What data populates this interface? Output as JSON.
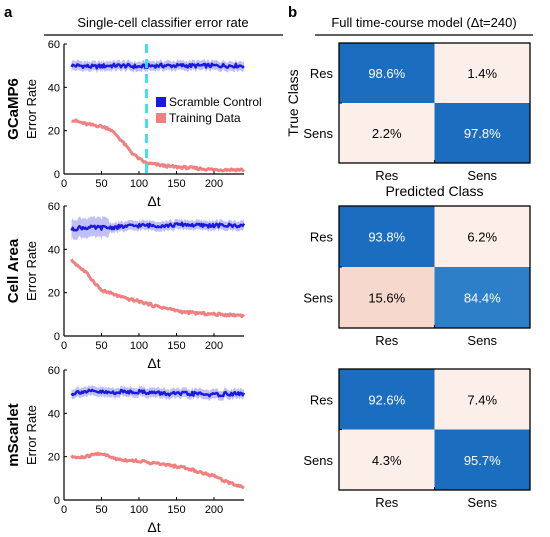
{
  "panel_a": {
    "label": "a",
    "header": "Single-cell classifier error rate",
    "legend": [
      "Scramble Control",
      "Training Data"
    ]
  },
  "panel_b": {
    "label": "b",
    "header": "Full time-course model (Δt=240)"
  },
  "colors": {
    "scramble": "#1a1adc",
    "scramble_band": "#8c8cf0",
    "training": "#f08080",
    "marker_line": "#33e0f0",
    "cm_high": "#1a6dbf",
    "cm_mid": "#2d7fc8",
    "cm_low": "#fcefe9",
    "cm_pink": "#f6d8cc"
  },
  "chart_data": [
    {
      "type": "line",
      "title": "",
      "row_label": "GCaMP6",
      "xlabel": "Δt",
      "ylabel": "Error Rate",
      "xlim": [
        0,
        240
      ],
      "ylim": [
        0,
        60
      ],
      "xticks": [
        0,
        50,
        100,
        150,
        200
      ],
      "yticks": [
        0,
        20,
        40,
        60
      ],
      "vline_x": 110,
      "series": [
        {
          "name": "Scramble Control",
          "x": [
            10,
            20,
            40,
            60,
            80,
            100,
            120,
            140,
            160,
            180,
            200,
            220,
            240
          ],
          "y": [
            50,
            50,
            49.5,
            50,
            50,
            49.5,
            50,
            50,
            50,
            50,
            50,
            50,
            50
          ]
        },
        {
          "name": "Training Data",
          "x": [
            10,
            20,
            30,
            50,
            60,
            70,
            80,
            90,
            100,
            110,
            120,
            140,
            160,
            180,
            200,
            220,
            240
          ],
          "y": [
            25,
            24,
            23,
            22,
            21,
            18,
            14,
            10,
            7,
            5,
            4.5,
            3.5,
            3,
            2.5,
            2,
            2,
            2
          ]
        }
      ]
    },
    {
      "type": "line",
      "title": "",
      "row_label": "Cell  Area",
      "xlabel": "Δt",
      "ylabel": "Error Rate",
      "xlim": [
        0,
        240
      ],
      "ylim": [
        0,
        60
      ],
      "xticks": [
        0,
        50,
        100,
        150,
        200
      ],
      "yticks": [
        0,
        20,
        40,
        60
      ],
      "series": [
        {
          "name": "Scramble Control",
          "x": [
            10,
            20,
            40,
            60,
            80,
            100,
            120,
            140,
            160,
            180,
            200,
            220,
            240
          ],
          "y": [
            49,
            50,
            50,
            50,
            50.5,
            51,
            51,
            51,
            51.5,
            51,
            51,
            51,
            51
          ]
        },
        {
          "name": "Training Data",
          "x": [
            10,
            20,
            30,
            40,
            50,
            60,
            80,
            100,
            120,
            140,
            160,
            180,
            200,
            220,
            240
          ],
          "y": [
            35,
            32,
            29,
            25,
            21,
            20,
            17.5,
            16,
            14,
            12.5,
            11,
            10.5,
            10,
            9.8,
            9.5
          ]
        }
      ]
    },
    {
      "type": "line",
      "title": "",
      "row_label": "mScarlet",
      "xlabel": "Δt",
      "ylabel": "Error Rate",
      "xlim": [
        0,
        240
      ],
      "ylim": [
        0,
        60
      ],
      "xticks": [
        0,
        50,
        100,
        150,
        200
      ],
      "yticks": [
        0,
        20,
        40,
        60
      ],
      "series": [
        {
          "name": "Scramble Control",
          "x": [
            10,
            20,
            40,
            60,
            80,
            100,
            120,
            140,
            160,
            180,
            200,
            220,
            240
          ],
          "y": [
            49,
            50,
            50,
            49.5,
            50,
            50,
            49.5,
            49,
            49,
            49,
            48.5,
            49,
            49
          ]
        },
        {
          "name": "Training Data",
          "x": [
            10,
            20,
            30,
            40,
            50,
            60,
            70,
            80,
            100,
            120,
            140,
            160,
            180,
            200,
            220,
            230,
            240
          ],
          "y": [
            20,
            19.5,
            20,
            21,
            21.5,
            20,
            19,
            18.5,
            18,
            17,
            16,
            15,
            13,
            11,
            8,
            7,
            6
          ]
        }
      ]
    },
    {
      "type": "heatmap",
      "title": "Full time-course model (Δt=240)",
      "xlabel": "Predicted Class",
      "ylabel": "True Class",
      "rows": [
        "Res",
        "Sens"
      ],
      "cols": [
        "Res",
        "Sens"
      ],
      "values": [
        [
          98.6,
          1.4
        ],
        [
          2.2,
          97.8
        ]
      ],
      "labels": [
        [
          "98.6%",
          "1.4%"
        ],
        [
          "2.2%",
          "97.8%"
        ]
      ]
    },
    {
      "type": "heatmap",
      "title": "",
      "xlabel": "",
      "ylabel": "",
      "rows": [
        "Res",
        "Sens"
      ],
      "cols": [
        "Res",
        "Sens"
      ],
      "values": [
        [
          93.8,
          6.2
        ],
        [
          15.6,
          84.4
        ]
      ],
      "labels": [
        [
          "93.8%",
          "6.2%"
        ],
        [
          "15.6%",
          "84.4%"
        ]
      ]
    },
    {
      "type": "heatmap",
      "title": "",
      "xlabel": "",
      "ylabel": "",
      "rows": [
        "Res",
        "Sens"
      ],
      "cols": [
        "Res",
        "Sens"
      ],
      "values": [
        [
          92.6,
          7.4
        ],
        [
          4.3,
          95.7
        ]
      ],
      "labels": [
        [
          "92.6%",
          "7.4%"
        ],
        [
          "4.3%",
          "95.7%"
        ]
      ]
    }
  ]
}
